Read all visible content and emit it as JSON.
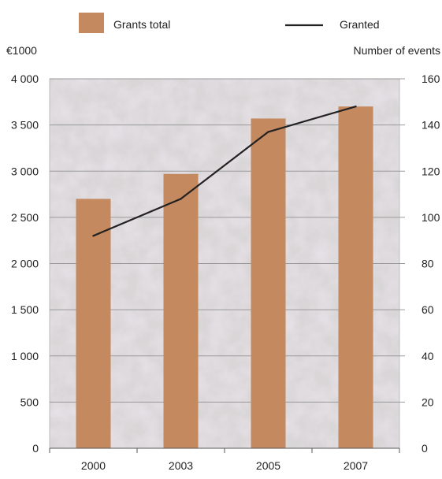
{
  "chart_data": {
    "type": "bar",
    "categories": [
      "2000",
      "2003",
      "2005",
      "2007"
    ],
    "legend": {
      "placement": "top",
      "bar_label": "Grants total",
      "line_label": "Granted"
    },
    "left_axis": {
      "unit_label": "€1000",
      "ylim": [
        0,
        4000
      ],
      "ticks": [
        0,
        500,
        1000,
        1500,
        2000,
        2500,
        3000,
        3500,
        4000
      ],
      "tick_labels": [
        "0",
        "500",
        "1 000",
        "1 500",
        "2 000",
        "2 500",
        "3 000",
        "3 500",
        "4 000"
      ]
    },
    "right_axis": {
      "unit_label": "Number of events",
      "ylim": [
        0,
        160
      ],
      "ticks": [
        0,
        20,
        40,
        60,
        80,
        100,
        120,
        140,
        160
      ],
      "tick_labels": [
        "0",
        "20",
        "40",
        "60",
        "80",
        "100",
        "120",
        "140",
        "160"
      ]
    },
    "series": [
      {
        "name": "Grants total",
        "type": "bar",
        "axis": "left",
        "values": [
          2700,
          2970,
          3570,
          3700
        ]
      },
      {
        "name": "Granted",
        "type": "line",
        "axis": "right",
        "values": [
          92,
          108,
          137,
          148
        ]
      }
    ],
    "grid": true,
    "colors": {
      "bar": "#c4895f",
      "line": "#222222",
      "grid": "#9a9a9a",
      "axis": "#555555",
      "plot_background": "#d9d6d8",
      "stone_light": "#ece8ea",
      "stone_mid": "#cfc9ce",
      "stone_dark": "#b8aeb6"
    }
  }
}
